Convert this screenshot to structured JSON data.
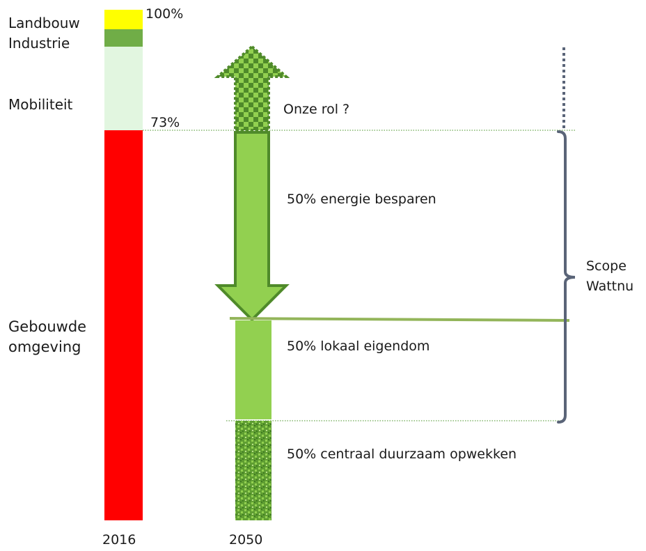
{
  "left_bar": {
    "year_label": "2016",
    "segments": {
      "landbouw": {
        "label": "Landbouw",
        "color": "#ffff00"
      },
      "industrie": {
        "label": "Industrie",
        "color": "#70ad47"
      },
      "mobiliteit": {
        "label": "Mobiliteit",
        "color": "#e2f6e0"
      },
      "gebouwde_omgeving": {
        "label_line1": "Gebouwde",
        "label_line2": "omgeving",
        "color": "#ff0000"
      }
    },
    "top_percent_label": "100%",
    "threshold_percent_label": "73%"
  },
  "right_column": {
    "year_label": "2050",
    "up_arrow_label": "Onze rol ?",
    "down_arrow_label": "50% energie besparen",
    "lokaal_label": "50% lokaal eigendom",
    "centraal_label": "50% centraal duurzaam opwekken",
    "colors": {
      "arrow_fill": "#92d050",
      "arrow_stroke": "#4f8a2a",
      "lokaal_fill": "#92d050",
      "separator_line": "#93b55a",
      "checker_dark": "#4f8a2a",
      "checker_light": "#92d050",
      "centraal_fill": "#5f9e32"
    }
  },
  "scope": {
    "label_line1": "Scope",
    "label_line2": "Wattnu",
    "bracket_color": "#5a6478"
  }
}
